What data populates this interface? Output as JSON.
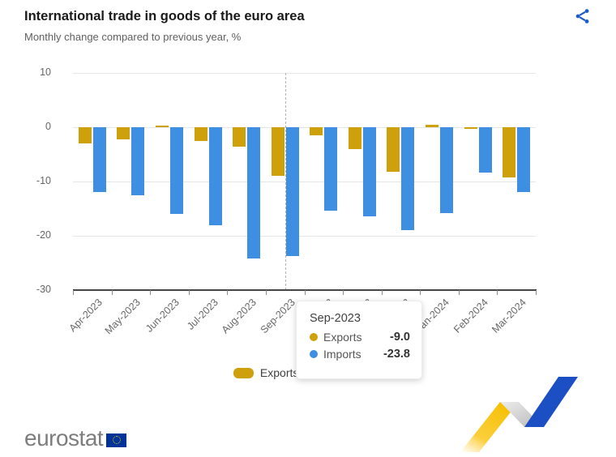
{
  "header": {
    "title": "International trade in goods of the euro area",
    "subtitle": "Monthly change compared to previous year, %"
  },
  "colors": {
    "exports": "#CDA00C",
    "imports": "#3E8EE2",
    "share_icon": "#1C5BC8",
    "eu_flag_blue": "#003399",
    "eu_flag_stars": "#FFCC00",
    "gridline": "#E6E6E6",
    "axis_text": "#666666"
  },
  "chart_data": {
    "type": "bar",
    "title": "International trade in goods of the euro area",
    "subtitle": "Monthly change compared to previous year, %",
    "categories": [
      "Apr-2023",
      "May-2023",
      "Jun-2023",
      "Jul-2023",
      "Aug-2023",
      "Sep-2023",
      "Oct-2023",
      "Nov-2023",
      "Dec-2023",
      "Jan-2024",
      "Feb-2024",
      "Mar-2024"
    ],
    "series": [
      {
        "name": "Exports",
        "color": "#CDA00C",
        "values": [
          -3.0,
          -2.2,
          0.3,
          -2.6,
          -3.6,
          -9.0,
          -1.5,
          -4.0,
          -8.2,
          0.5,
          -0.3,
          -9.2
        ]
      },
      {
        "name": "Imports",
        "color": "#3E8EE2",
        "values": [
          -12.0,
          -12.5,
          -16.0,
          -18.0,
          -24.2,
          -23.8,
          -15.3,
          -16.4,
          -18.9,
          -15.8,
          -8.4,
          -12.0
        ]
      }
    ],
    "xlabel": "",
    "ylabel": "",
    "ylim": [
      -30,
      10
    ],
    "yticks": [
      10,
      0,
      -10,
      -20,
      -30
    ],
    "grid": true,
    "legend_position": "bottom",
    "highlighted_category": "Sep-2023",
    "highlighted_category_index": 5
  },
  "tooltip": {
    "title": "Sep-2023",
    "rows": [
      {
        "label": "Exports",
        "value": "-9.0"
      },
      {
        "label": "Imports",
        "value": "-23.8"
      }
    ]
  },
  "legend": {
    "items": [
      "Exports",
      "Imports"
    ]
  },
  "footer": {
    "logo_text": "eurostat"
  }
}
